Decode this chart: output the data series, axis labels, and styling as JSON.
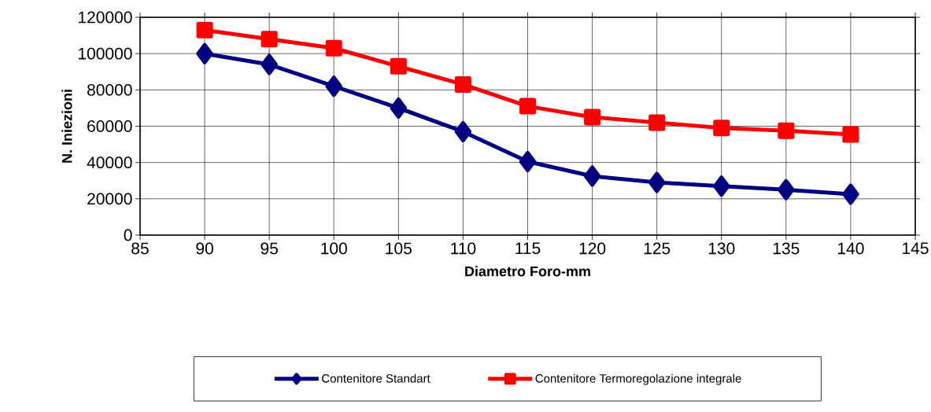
{
  "chart_data": {
    "type": "line",
    "xlabel": "Diametro Foro-mm",
    "ylabel": "N. Iniezioni",
    "x": [
      90,
      95,
      100,
      105,
      110,
      115,
      120,
      125,
      130,
      135,
      140
    ],
    "series": [
      {
        "name": "Contenitore Standart",
        "color": "#000080",
        "marker": "diamond",
        "values": [
          100000,
          94000,
          82000,
          70000,
          57000,
          40500,
          32500,
          29000,
          27000,
          25000,
          22500
        ]
      },
      {
        "name": "Contenitore Termoregolazione integrale",
        "color": "#ff0000",
        "marker": "square",
        "values": [
          113000,
          108000,
          103000,
          93000,
          83000,
          71000,
          65000,
          62000,
          59000,
          57500,
          55500
        ]
      }
    ],
    "xlim": [
      85,
      145
    ],
    "xticks": [
      85,
      90,
      95,
      100,
      105,
      110,
      115,
      120,
      125,
      130,
      135,
      140,
      145
    ],
    "ylim": [
      0,
      120000
    ],
    "yticks": [
      0,
      20000,
      40000,
      60000,
      80000,
      100000,
      120000
    ],
    "grid": true,
    "legend": "bottom",
    "line_style": "solid"
  }
}
